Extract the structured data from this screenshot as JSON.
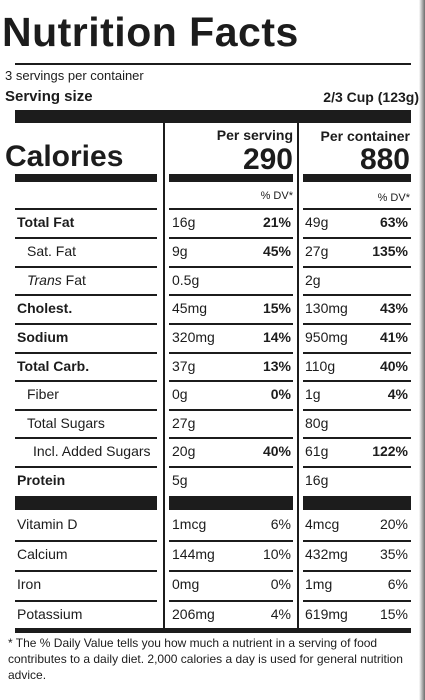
{
  "title": "Nutrition Facts",
  "servings_per_container": "3 servings per container",
  "serving_size": {
    "label": "Serving size",
    "value": "2/3 Cup (123g)"
  },
  "columns": {
    "per_serving": "Per serving",
    "per_container": "Per container",
    "dv_header": "% DV*"
  },
  "calories": {
    "label": "Calories",
    "per_serving": "290",
    "per_container": "880"
  },
  "rows": [
    {
      "name": "Total Fat",
      "style": "bold",
      "s_amt": "16g",
      "s_dv": "21%",
      "c_amt": "49g",
      "c_dv": "63%"
    },
    {
      "name": "Sat. Fat",
      "style": "indent",
      "s_amt": "9g",
      "s_dv": "45%",
      "c_amt": "27g",
      "c_dv": "135%"
    },
    {
      "name_prefix": "Trans",
      "name": " Fat",
      "style": "trans",
      "s_amt": "0.5g",
      "s_dv": "",
      "c_amt": "2g",
      "c_dv": ""
    },
    {
      "name": "Cholest.",
      "style": "bold",
      "s_amt": "45mg",
      "s_dv": "15%",
      "c_amt": "130mg",
      "c_dv": "43%"
    },
    {
      "name": "Sodium",
      "style": "bold",
      "s_amt": "320mg",
      "s_dv": "14%",
      "c_amt": "950mg",
      "c_dv": "41%"
    },
    {
      "name": "Total Carb.",
      "style": "bold",
      "s_amt": "37g",
      "s_dv": "13%",
      "c_amt": "110g",
      "c_dv": "40%"
    },
    {
      "name": "Fiber",
      "style": "indent",
      "s_amt": "0g",
      "s_dv": "0%",
      "c_amt": "1g",
      "c_dv": "4%"
    },
    {
      "name": "Total Sugars",
      "style": "indent",
      "s_amt": "27g",
      "s_dv": "",
      "c_amt": "80g",
      "c_dv": ""
    },
    {
      "name": "Incl. Added Sugars",
      "style": "indent2",
      "s_amt": "20g",
      "s_dv": "40%",
      "c_amt": "61g",
      "c_dv": "122%"
    },
    {
      "name": "Protein",
      "style": "bold",
      "s_amt": "5g",
      "s_dv": "",
      "c_amt": "16g",
      "c_dv": ""
    }
  ],
  "vitamins": [
    {
      "name": "Vitamin D",
      "s_amt": "1mcg",
      "s_dv": "6%",
      "c_amt": "4mcg",
      "c_dv": "20%"
    },
    {
      "name": "Calcium",
      "s_amt": "144mg",
      "s_dv": "10%",
      "c_amt": "432mg",
      "c_dv": "35%"
    },
    {
      "name": "Iron",
      "s_amt": "0mg",
      "s_dv": "0%",
      "c_amt": "1mg",
      "c_dv": "6%"
    },
    {
      "name": "Potassium",
      "s_amt": "206mg",
      "s_dv": "4%",
      "c_amt": "619mg",
      "c_dv": "15%"
    }
  ],
  "footnote": "* The % Daily Value tells you how much a nutrient in a serving of food contributes to a daily diet. 2,000 calories a day is used for general nutrition advice."
}
